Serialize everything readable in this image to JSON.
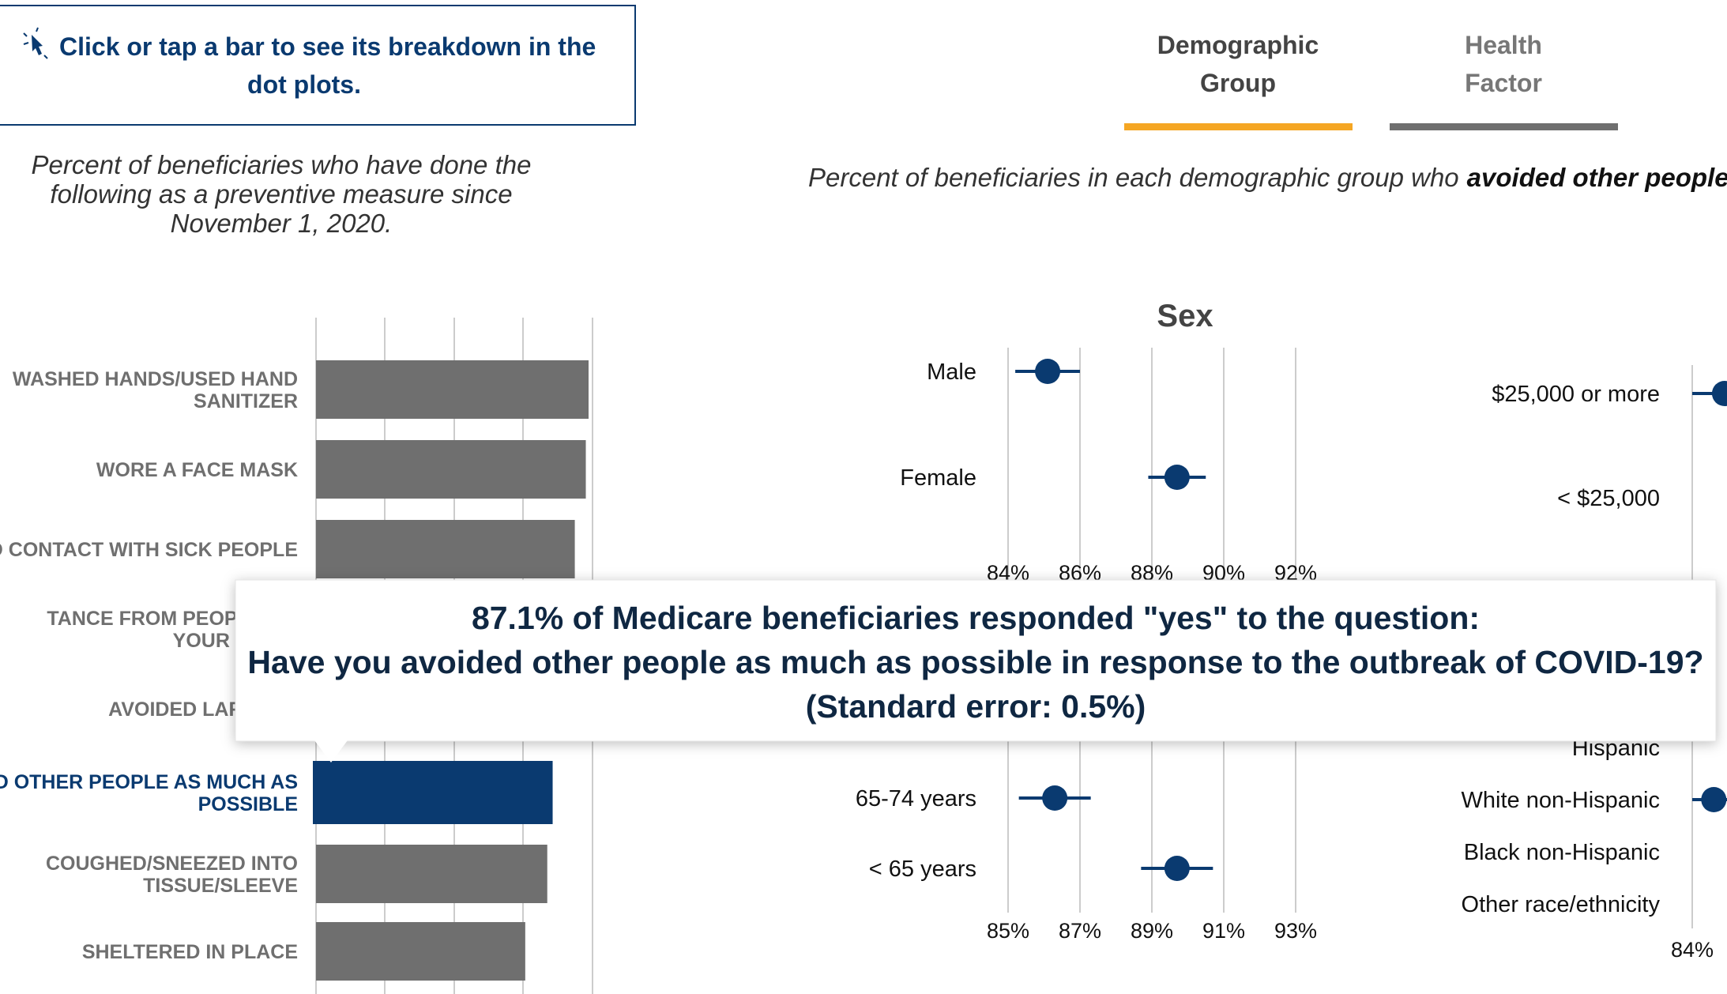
{
  "hint": {
    "line1": "Click or tap a bar to see its breakdown in the",
    "line2": "dot plots.",
    "icon": "pointer-click-icon"
  },
  "tabs": [
    {
      "label_line1": "Demographic",
      "label_line2": "Group",
      "active": true
    },
    {
      "label_line1": "Health",
      "label_line2": "Factor",
      "active": false
    }
  ],
  "colors": {
    "accent": "#f5a623",
    "navy": "#0a3a70",
    "bar_grey": "#6f6f6f",
    "tab_inactive_bar": "#6f6f6f",
    "grid": "#cccccc"
  },
  "left_caption": {
    "line1": "Percent of beneficiaries who have done the",
    "line2": "following as a preventive measure since",
    "line3": "November 1, 2020."
  },
  "right_caption": {
    "prefix": "Percent of beneficiaries in each demographic group who",
    "emphasis": "avoided other people a"
  },
  "chart_data": [
    {
      "type": "bar",
      "orientation": "horizontal",
      "categories": [
        [
          "WASHED HANDS/USED HAND",
          "SANITIZER"
        ],
        [
          "WORE A FACE MASK"
        ],
        [
          "D CONTACT WITH SICK PEOPLE"
        ],
        [
          "TANCE FROM PEOPLE OU",
          "YOUR HOUSI"
        ],
        [
          "AVOIDED LARGE GI"
        ],
        [
          "ED OTHER PEOPLE AS MUCH AS",
          "POSSIBLE"
        ],
        [
          "COUGHED/SNEEZED INTO",
          "TISSUE/SLEEVE"
        ],
        [
          "SHELTERED IN PLACE"
        ]
      ],
      "values": [
        99,
        98,
        94,
        null,
        null,
        87.1,
        84,
        76
      ],
      "selected_index": 5,
      "xlim": [
        0,
        100
      ]
    },
    {
      "type": "scatter",
      "subtype": "dot-with-error-bar",
      "title": "Sex",
      "categories": [
        "Male",
        "Female"
      ],
      "values": [
        85.1,
        88.7
      ],
      "errors": [
        0.9,
        0.8
      ],
      "xticks": [
        "84%",
        "86%",
        "88%",
        "90%",
        "92%"
      ],
      "xlim": [
        84,
        92
      ]
    },
    {
      "type": "scatter",
      "subtype": "dot-with-error-bar",
      "title": "",
      "categories": [
        "65-74 years",
        "< 65 years"
      ],
      "values": [
        86.3,
        89.7
      ],
      "errors": [
        1.0,
        1.0
      ],
      "xticks": [
        "85%",
        "87%",
        "89%",
        "91%",
        "93%"
      ],
      "xlim": [
        85,
        93
      ]
    },
    {
      "type": "scatter",
      "subtype": "dot-with-error-bar",
      "title": "",
      "categories": [
        "$25,000 or more",
        "< $25,000"
      ],
      "values": [
        84.9,
        null
      ],
      "errors": [
        0.9,
        null
      ],
      "xlim": [
        84,
        92
      ]
    },
    {
      "type": "scatter",
      "subtype": "dot-with-error-bar",
      "title": "",
      "categories": [
        "Hispanic",
        "White non-Hispanic",
        "Black non-Hispanic",
        "Other race/ethnicity"
      ],
      "values": [
        null,
        84.6,
        null,
        null
      ],
      "errors": [
        null,
        0.6,
        null,
        null
      ],
      "xticks": [
        "84%"
      ],
      "xlim": [
        84,
        92
      ]
    }
  ],
  "tooltip": {
    "line1": "87.1% of Medicare beneficiaries responded \"yes\" to the question:",
    "line2": "Have you avoided other people as much as possible in response to the outbreak of COVID-19?",
    "line3": "(Standard error: 0.5%)"
  }
}
